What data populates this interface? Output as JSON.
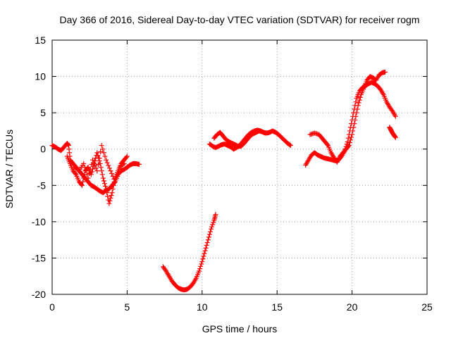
{
  "chart_data": {
    "type": "scatter",
    "title": "Day 366 of 2016, Sidereal Day-to-day VTEC variation (SDTVAR) for receiver rogm",
    "xlabel": "GPS time / hours",
    "ylabel": "SDTVAR / TECUs",
    "xlim": [
      0,
      25
    ],
    "ylim": [
      -20,
      15
    ],
    "xticks": [
      "0",
      "5",
      "10",
      "15",
      "20",
      "25"
    ],
    "yticks": [
      "15",
      "10",
      "5",
      "0",
      "-5",
      "-10",
      "-15",
      "-20"
    ],
    "grid": true,
    "marker": "+",
    "marker_color": "#ff0000",
    "series": [
      {
        "name": "SDTVAR",
        "segments": [
          {
            "x": [
              0.0,
              0.2,
              0.4,
              0.6,
              0.8,
              1.0,
              1.1,
              1.2,
              1.4,
              1.6,
              1.8,
              2.0,
              2.2,
              2.4,
              2.6,
              2.8,
              3.0,
              3.2,
              3.4,
              3.6,
              3.8,
              4.0,
              4.2,
              4.4,
              4.6,
              4.8,
              5.0,
              5.2,
              5.4,
              5.6,
              5.8
            ],
            "y": [
              0.5,
              0.3,
              0.0,
              -0.2,
              0.3,
              0.8,
              0.5,
              -1.5,
              -2.0,
              -2.5,
              -3.0,
              -3.5,
              -4.0,
              -4.5,
              -5.0,
              -5.2,
              -5.5,
              -5.8,
              -6.0,
              -5.7,
              -5.5,
              -5.0,
              -4.5,
              -3.5,
              -3.0,
              -2.8,
              -2.5,
              -2.2,
              -2.0,
              -2.0,
              -2.1
            ]
          },
          {
            "x": [
              1.0,
              1.2,
              1.4,
              1.6,
              1.8,
              2.0,
              2.2,
              2.4,
              2.6,
              2.8,
              3.0,
              3.2,
              3.4,
              3.6,
              3.8,
              4.0,
              4.2,
              4.4,
              4.6,
              4.8,
              5.0
            ],
            "y": [
              -1.0,
              -2.0,
              -3.0,
              -3.5,
              -4.5,
              -5.0,
              -3.0,
              -2.5,
              -3.5,
              -2.0,
              -0.5,
              -2.0,
              -4.0,
              -5.5,
              -7.5,
              -6.0,
              -4.0,
              -3.0,
              -2.0,
              -1.5,
              -1.0
            ]
          },
          {
            "x": [
              1.5,
              1.8,
              2.1,
              2.4,
              2.7,
              3.0,
              3.3,
              3.6,
              3.9,
              4.2,
              4.5,
              4.8
            ],
            "y": [
              -2.5,
              -3.0,
              -2.0,
              -4.0,
              -1.5,
              -3.0,
              0.5,
              -1.5,
              -3.0,
              -4.5,
              -2.5,
              -2.0
            ]
          },
          {
            "x": [
              7.4,
              7.6,
              7.8,
              8.0,
              8.2,
              8.4,
              8.6,
              8.8,
              9.0,
              9.2,
              9.4,
              9.6,
              9.8,
              10.0,
              10.2,
              10.4,
              10.6,
              10.8,
              10.9
            ],
            "y": [
              -16.2,
              -16.8,
              -17.5,
              -18.2,
              -18.7,
              -19.1,
              -19.3,
              -19.4,
              -19.3,
              -19.0,
              -18.5,
              -17.8,
              -16.8,
              -15.5,
              -14.0,
              -12.5,
              -11.0,
              -9.8,
              -9.0
            ]
          },
          {
            "x": [
              10.5,
              10.7,
              10.9,
              11.1,
              11.3,
              11.5,
              11.7,
              11.9,
              12.1,
              12.3,
              12.5,
              12.7,
              12.9,
              13.1,
              13.3,
              13.5,
              13.7,
              13.9,
              14.1,
              14.3,
              14.5,
              14.7,
              14.9,
              15.1,
              15.3,
              15.5,
              15.7,
              15.9
            ],
            "y": [
              0.7,
              0.4,
              0.2,
              0.4,
              0.6,
              0.7,
              0.5,
              0.3,
              0.0,
              0.2,
              0.5,
              1.0,
              1.5,
              2.0,
              2.3,
              2.5,
              2.6,
              2.5,
              2.3,
              2.2,
              2.3,
              2.5,
              2.3,
              2.0,
              1.6,
              1.2,
              0.8,
              0.5
            ]
          },
          {
            "x": [
              10.8,
              11.0,
              11.2,
              11.4,
              11.6,
              11.8,
              12.0,
              12.2,
              12.4,
              12.6,
              12.8,
              13.0,
              13.2,
              13.4,
              13.6,
              13.8,
              14.0,
              14.2
            ],
            "y": [
              1.5,
              2.0,
              2.3,
              1.8,
              1.3,
              1.0,
              0.8,
              0.6,
              0.4,
              0.4,
              0.8,
              1.3,
              1.8,
              2.1,
              2.3,
              2.5,
              2.4,
              2.2
            ]
          },
          {
            "x": [
              16.9,
              17.1,
              17.3,
              17.5,
              17.7,
              17.9,
              18.1,
              18.3,
              18.5,
              18.7,
              18.9,
              19.1,
              19.3,
              19.5,
              19.7,
              19.9,
              20.1,
              20.3,
              20.5,
              20.7,
              20.9,
              21.1,
              21.3,
              21.5,
              21.7,
              21.9,
              22.1,
              22.3,
              22.5,
              22.7,
              22.9
            ],
            "y": [
              -2.2,
              -1.5,
              -0.8,
              -0.5,
              -0.8,
              -1.0,
              -1.2,
              -1.3,
              -1.4,
              -1.5,
              -1.6,
              -1.5,
              -1.0,
              -0.3,
              1.0,
              3.0,
              5.0,
              7.0,
              8.0,
              8.5,
              8.7,
              9.0,
              9.2,
              9.0,
              8.7,
              8.2,
              7.5,
              6.5,
              5.8,
              5.2,
              4.5
            ]
          },
          {
            "x": [
              17.2,
              17.5,
              17.8,
              18.0,
              18.2,
              18.4,
              18.6,
              18.8,
              19.0,
              19.2,
              19.4,
              19.6,
              19.8,
              20.0,
              20.2,
              20.4,
              20.6,
              20.8,
              21.0,
              21.2,
              21.4,
              21.6,
              21.8,
              22.0,
              22.2
            ],
            "y": [
              2.0,
              2.2,
              2.0,
              1.5,
              1.0,
              0.5,
              -0.5,
              -1.2,
              -1.8,
              -1.0,
              -0.5,
              0.0,
              0.5,
              2.0,
              4.0,
              6.0,
              7.5,
              8.5,
              9.5,
              10.0,
              9.8,
              9.5,
              10.2,
              10.5,
              10.6
            ]
          },
          {
            "x": [
              22.5,
              22.6,
              22.7,
              22.8,
              22.9
            ],
            "y": [
              3.0,
              2.6,
              2.2,
              1.9,
              1.6
            ]
          }
        ]
      }
    ]
  }
}
